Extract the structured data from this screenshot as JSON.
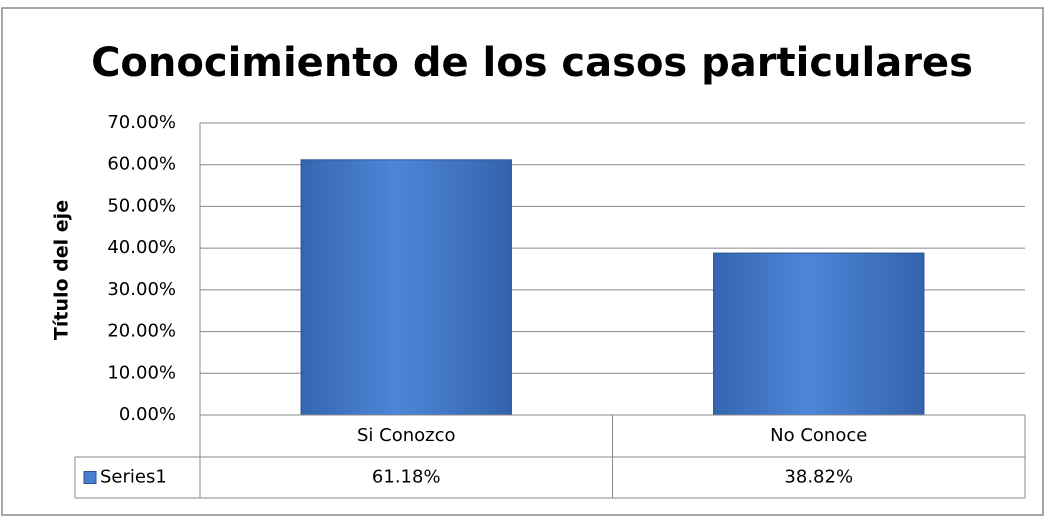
{
  "chart_data": {
    "type": "bar",
    "title": "Conocimiento de los casos particulares",
    "y_label": "Título del eje",
    "categories": [
      "Si Conozco",
      "No Conoce"
    ],
    "series": [
      {
        "name": "Series1",
        "color": "#4a7fd0",
        "values": [
          61.18,
          38.82
        ],
        "value_labels": [
          "61.18%",
          "38.82%"
        ]
      }
    ],
    "ylim": [
      0,
      70
    ],
    "yticks": [
      {
        "value": 0,
        "label": "0.00%"
      },
      {
        "value": 10,
        "label": "10.00%"
      },
      {
        "value": 20,
        "label": "20.00%"
      },
      {
        "value": 30,
        "label": "30.00%"
      },
      {
        "value": 40,
        "label": "40.00%"
      },
      {
        "value": 50,
        "label": "50.00%"
      },
      {
        "value": 60,
        "label": "60.00%"
      },
      {
        "value": 70,
        "label": "70.00%"
      }
    ],
    "grid": true,
    "data_table": true
  }
}
